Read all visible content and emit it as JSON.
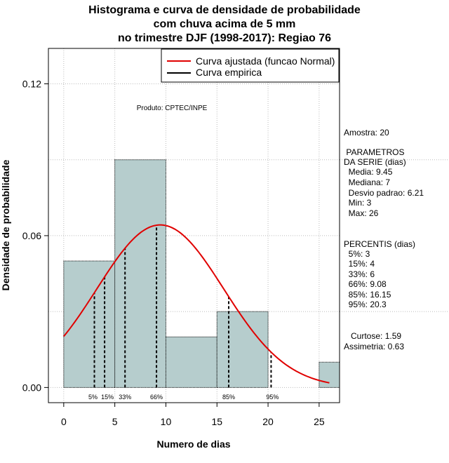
{
  "chart_data": {
    "type": "histogram",
    "title_lines": [
      "Histograma e curva de densidade de probabilidade",
      "com chuva acima de 5 mm",
      "no trimestre DJF (1998-2017): Regiao 76"
    ],
    "xlabel": "Numero de dias",
    "ylabel": "Densidade de probabilidade",
    "xlim": [
      -1.5,
      27
    ],
    "ylim": [
      -0.006,
      0.134
    ],
    "x_ticks": [
      0,
      5,
      10,
      15,
      20,
      25
    ],
    "y_ticks": [
      0.0,
      0.06,
      0.12
    ],
    "y_tick_labels": [
      "0.00",
      "0.06",
      "0.12"
    ],
    "grid": true,
    "bins": [
      {
        "x0": 0,
        "x1": 5,
        "density": 0.05
      },
      {
        "x0": 5,
        "x1": 10,
        "density": 0.09
      },
      {
        "x0": 10,
        "x1": 15,
        "density": 0.02
      },
      {
        "x0": 15,
        "x1": 20,
        "density": 0.03
      },
      {
        "x0": 25,
        "x1": 27,
        "density": 0.01
      }
    ],
    "normal_curve": {
      "mean": 9.45,
      "sd": 6.21,
      "x_from": 0,
      "x_to": 26
    },
    "percentile_lines": [
      {
        "label": "5%",
        "x": 3
      },
      {
        "label": "15%",
        "x": 4
      },
      {
        "label": "33%",
        "x": 6
      },
      {
        "label": "66%",
        "x": 9.08
      },
      {
        "label": "85%",
        "x": 16.15
      },
      {
        "label": "95%",
        "x": 20.3
      }
    ],
    "legend": [
      {
        "label": "Curva ajustada (funcao Normal)",
        "color": "#e00000"
      },
      {
        "label": "Curva empirica",
        "color": "#000000"
      }
    ],
    "annotation": "Produto: CPTEC/INPE",
    "colors": {
      "bar_fill": "#b6cdcd",
      "curve": "#e00000",
      "grid": "#bbbbbb"
    }
  },
  "stats": {
    "amostra": "Amostra: 20",
    "parametros_header": [
      " PARAMETROS",
      "DA SERIE (dias)"
    ],
    "parametros": [
      "  Media: 9.45",
      "  Mediana: 7",
      "  Desvio padrao: 6.21",
      "  Min: 3",
      "  Max: 26"
    ],
    "percentis_header": "PERCENTIS (dias)",
    "percentis": [
      "  5%: 3",
      "  15%: 4",
      "  33%: 6",
      "  66%: 9.08",
      "  85%: 16.15",
      "  95%: 20.3"
    ],
    "curtose": "   Curtose: 1.59",
    "assimetria": "Assimetria: 0.63"
  }
}
